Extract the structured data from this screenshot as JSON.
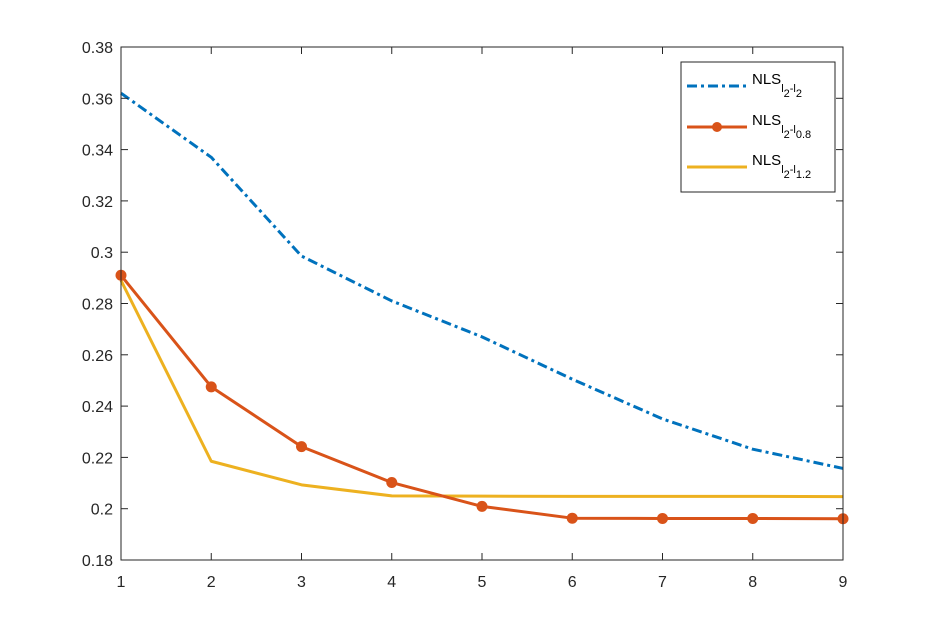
{
  "chart_data": {
    "type": "line",
    "title": "",
    "xlabel": "",
    "ylabel": "",
    "xlim": [
      1,
      9
    ],
    "ylim": [
      0.18,
      0.38
    ],
    "x_ticks": [
      1,
      2,
      3,
      4,
      5,
      6,
      7,
      8,
      9
    ],
    "x_tick_labels": [
      "1",
      "2",
      "3",
      "4",
      "5",
      "6",
      "7",
      "8",
      "9"
    ],
    "y_ticks": [
      0.18,
      0.2,
      0.22,
      0.24,
      0.26,
      0.28,
      0.3,
      0.32,
      0.34,
      0.36,
      0.38
    ],
    "y_tick_labels": [
      "0.18",
      "0.2",
      "0.22",
      "0.24",
      "0.26",
      "0.28",
      "0.3",
      "0.32",
      "0.34",
      "0.36",
      "0.38"
    ],
    "grid": false,
    "legend_position": "top-right",
    "x": [
      1,
      2,
      3,
      4,
      5,
      6,
      7,
      8,
      9
    ],
    "series": [
      {
        "legend_main": "NLS",
        "legend_sub": [
          "l",
          "2",
          "-l",
          "2"
        ],
        "color": "#0072bd",
        "style": "dashdot",
        "marker": "none",
        "values": [
          0.362,
          0.337,
          0.2985,
          0.281,
          0.267,
          0.2505,
          0.235,
          0.2232,
          0.2157
        ]
      },
      {
        "legend_main": "NLS",
        "legend_sub": [
          "l",
          "2",
          "-l",
          "0.8"
        ],
        "color": "#d95319",
        "style": "solid",
        "marker": "circle",
        "values": [
          0.291,
          0.2475,
          0.2242,
          0.2102,
          0.2009,
          0.1963,
          0.1962,
          0.1962,
          0.1961
        ]
      },
      {
        "legend_main": "NLS",
        "legend_sub": [
          "l",
          "2",
          "-l",
          "1.2"
        ],
        "color": "#edb120",
        "style": "solid",
        "marker": "none",
        "values": [
          0.289,
          0.2185,
          0.2093,
          0.205,
          0.2049,
          0.2048,
          0.2048,
          0.2048,
          0.2047
        ]
      }
    ]
  }
}
